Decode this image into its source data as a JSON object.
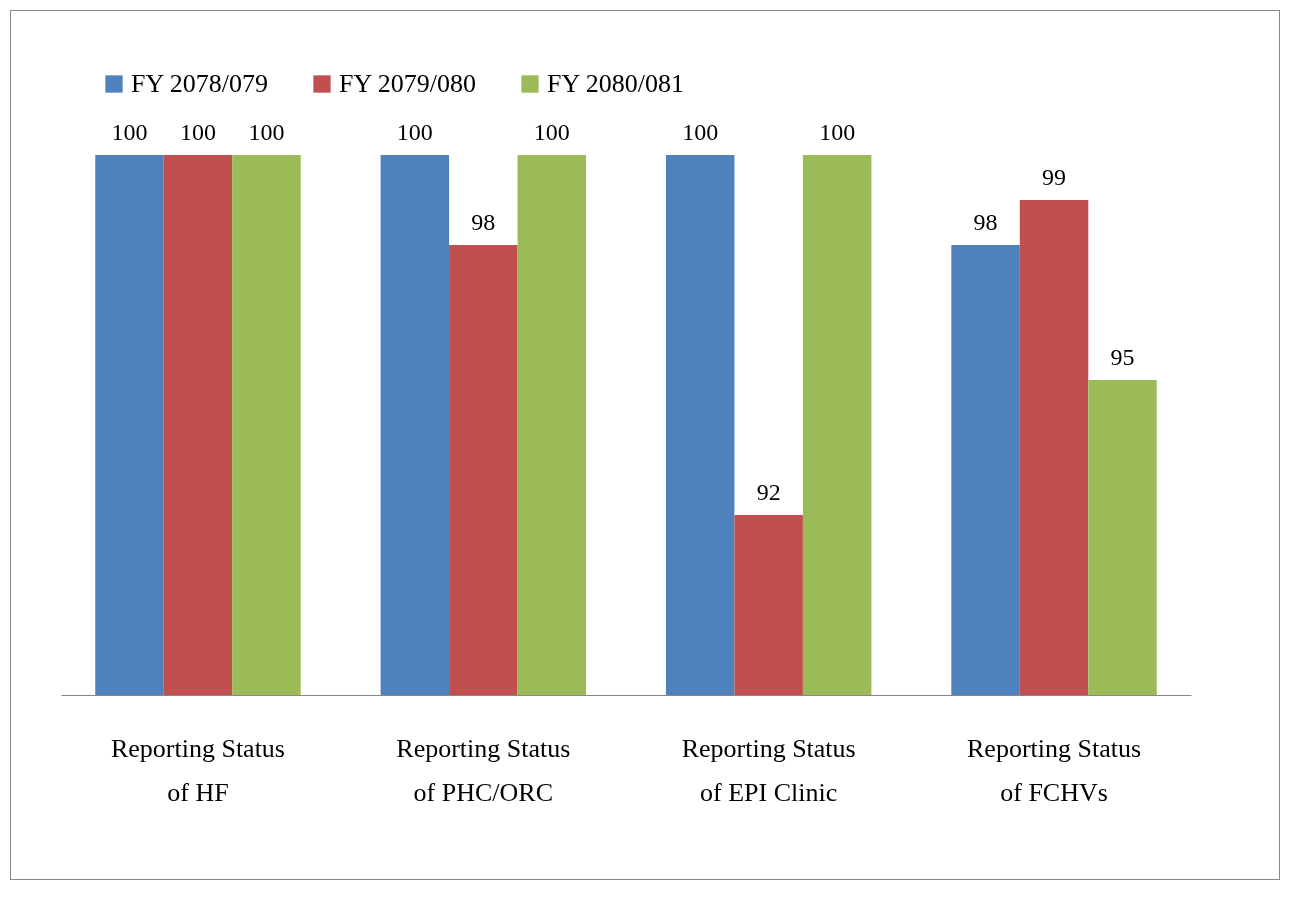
{
  "chart_data": {
    "type": "bar",
    "categories": [
      "Reporting Status of HF",
      "Reporting Status of PHC/ORC",
      "Reporting Status of EPI Clinic",
      "Reporting Status of FCHVs"
    ],
    "series": [
      {
        "name": "FY 2078/079",
        "color": "#4f81bd",
        "values": [
          100,
          100,
          100,
          98
        ]
      },
      {
        "name": "FY 2079/080",
        "color": "#c0504d",
        "values": [
          100,
          98,
          92,
          99
        ]
      },
      {
        "name": "FY 2080/081",
        "color": "#9bbb59",
        "values": [
          100,
          100,
          100,
          95
        ]
      }
    ],
    "ylim": [
      88,
      100
    ],
    "tick_labels": "x",
    "data_labels": true,
    "legend": "top"
  }
}
